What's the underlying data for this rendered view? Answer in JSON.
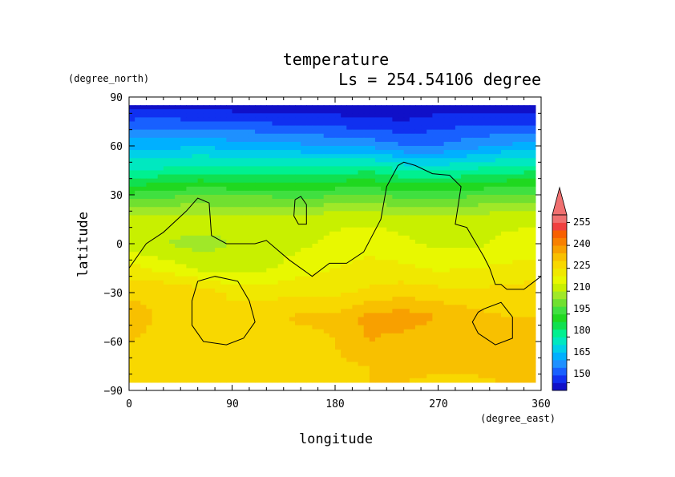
{
  "chart_data": {
    "type": "heatmap",
    "title": "temperature",
    "subtitle": "Ls = 254.54106 degree",
    "xlabel": "longitude",
    "ylabel": "latitude",
    "xunit": "(degree_east)",
    "yunit": "(degree_north)",
    "xlim": [
      0,
      360
    ],
    "ylim": [
      -90,
      90
    ],
    "x_ticks": [
      "0",
      "90",
      "180",
      "270",
      "360"
    ],
    "y_ticks": [
      "90",
      "60",
      "30",
      "0",
      "−30",
      "−60",
      "−90"
    ],
    "grid": false,
    "colorbar": {
      "labels": [
        "255",
        "240",
        "225",
        "210",
        "195",
        "180",
        "165",
        "150"
      ],
      "levels": [
        145,
        150,
        155,
        160,
        165,
        170,
        175,
        180,
        185,
        190,
        195,
        200,
        205,
        210,
        215,
        220,
        225,
        230,
        235,
        240,
        245,
        250,
        255,
        260
      ],
      "colors": [
        "#1010c8",
        "#1030f0",
        "#1860ff",
        "#1e90ff",
        "#00b0ff",
        "#00d0e8",
        "#00e8c0",
        "#00f090",
        "#10e050",
        "#20d820",
        "#40e040",
        "#70e030",
        "#a0e828",
        "#c8f000",
        "#e8f800",
        "#f0e800",
        "#f8d800",
        "#f8c000",
        "#f8a000",
        "#f88000",
        "#f86000",
        "#f04040",
        "#f07070"
      ],
      "extend_max_color": "#f07070"
    },
    "temperature_grid": {
      "lon": [
        0,
        30,
        60,
        90,
        120,
        150,
        180,
        210,
        240,
        270,
        300,
        330,
        360
      ],
      "lat": [
        85,
        75,
        60,
        45,
        30,
        15,
        0,
        -15,
        -30,
        -45,
        -60,
        -75,
        -85
      ],
      "values": [
        [
          147,
          147,
          148,
          147,
          147,
          147,
          147,
          147,
          148,
          147,
          147,
          147,
          147
        ],
        [
          156,
          157,
          155,
          155,
          154,
          153,
          152,
          151,
          150,
          152,
          154,
          153,
          152
        ],
        [
          168,
          168,
          170,
          168,
          168,
          166,
          165,
          164,
          160,
          160,
          163,
          166,
          167
        ],
        [
          180,
          181,
          183,
          182,
          182,
          182,
          183,
          184,
          180,
          179,
          181,
          183,
          184
        ],
        [
          196,
          198,
          200,
          199,
          199,
          198,
          199,
          200,
          198,
          198,
          199,
          200,
          201
        ],
        [
          212,
          214,
          213,
          212,
          213,
          213,
          214,
          214,
          213,
          212,
          213,
          214,
          214
        ],
        [
          211,
          210,
          208,
          210,
          212,
          214,
          216,
          218,
          216,
          214,
          214,
          216,
          217
        ],
        [
          222,
          218,
          214,
          212,
          214,
          218,
          220,
          222,
          221,
          219,
          220,
          221,
          222
        ],
        [
          229,
          230,
          228,
          224,
          223,
          224,
          224,
          226,
          228,
          227,
          226,
          227,
          228
        ],
        [
          232,
          229,
          226,
          227,
          229,
          231,
          231,
          237,
          238,
          235,
          232,
          230,
          230
        ],
        [
          230,
          229,
          225,
          225,
          227,
          228,
          230,
          235,
          233,
          230,
          230,
          231,
          231
        ],
        [
          230,
          228,
          226,
          227,
          228,
          228,
          229,
          230,
          231,
          231,
          231,
          232,
          232
        ],
        [
          228,
          227,
          228,
          228,
          229,
          229,
          229,
          230,
          230,
          229,
          229,
          230,
          230
        ]
      ]
    },
    "contours": [
      {
        "lon": [
          0,
          15,
          30,
          50,
          60,
          70,
          72,
          85,
          100,
          110,
          120,
          140,
          160,
          175,
          190,
          205,
          220,
          225,
          235,
          240,
          250,
          265,
          280,
          290,
          285,
          295,
          310,
          315,
          320,
          325,
          330,
          345,
          360
        ],
        "lat": [
          -15,
          0,
          7,
          20,
          28,
          25,
          5,
          0,
          0,
          0,
          2,
          -10,
          -20,
          -12,
          -12,
          -5,
          15,
          35,
          48,
          50,
          48,
          43,
          42,
          35,
          12,
          10,
          -8,
          -15,
          -25,
          -25,
          -28,
          -28,
          -20
        ]
      },
      {
        "lon": [
          145,
          150,
          155,
          155,
          148,
          144,
          145
        ],
        "lat": [
          27,
          29,
          24,
          12,
          12,
          17,
          27
        ]
      },
      {
        "lon": [
          60,
          75,
          95,
          105,
          110,
          100,
          85,
          65,
          55,
          55,
          60
        ],
        "lat": [
          -23,
          -20,
          -23,
          -35,
          -48,
          -58,
          -62,
          -60,
          -50,
          -35,
          -23
        ]
      },
      {
        "lon": [
          310,
          325,
          335,
          335,
          320,
          305,
          300,
          305,
          310
        ],
        "lat": [
          -40,
          -36,
          -45,
          -58,
          -62,
          -55,
          -48,
          -42,
          -40
        ]
      }
    ]
  }
}
